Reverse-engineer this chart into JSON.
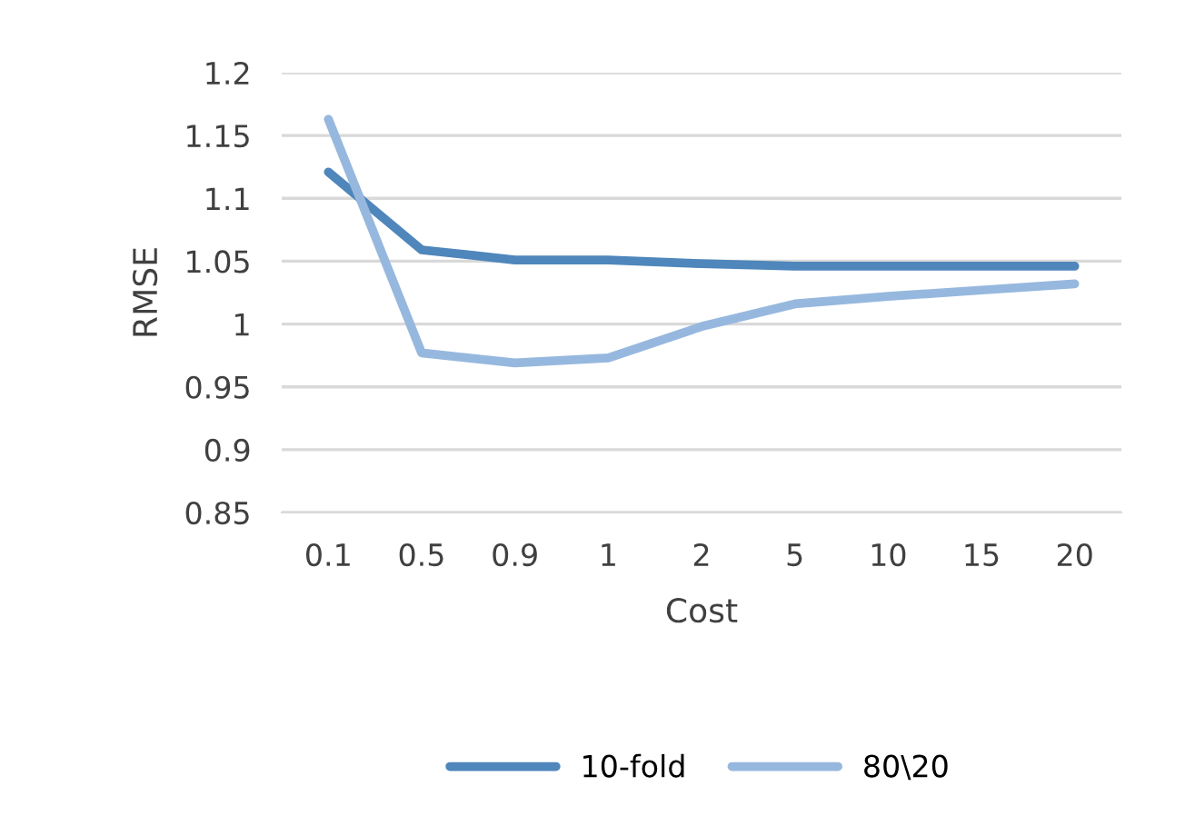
{
  "chart_data": {
    "type": "line",
    "xlabel": "Cost",
    "ylabel": "RMSE",
    "categories": [
      "0.1",
      "0.5",
      "0.9",
      "1",
      "2",
      "5",
      "10",
      "15",
      "20"
    ],
    "series": [
      {
        "name": "10-fold",
        "color": "#4f86bb",
        "values": [
          1.121,
          1.059,
          1.051,
          1.051,
          1.048,
          1.046,
          1.046,
          1.046,
          1.046
        ]
      },
      {
        "name": "80\\20",
        "color": "#97b8de",
        "values": [
          1.163,
          0.977,
          0.969,
          0.973,
          0.998,
          1.016,
          1.022,
          1.027,
          1.032
        ]
      }
    ],
    "ylim": [
      0.85,
      1.2
    ],
    "yticks": [
      {
        "value": 0.85,
        "label": "0.85"
      },
      {
        "value": 0.9,
        "label": "0.9"
      },
      {
        "value": 0.95,
        "label": "0.95"
      },
      {
        "value": 1,
        "label": "1"
      },
      {
        "value": 1.05,
        "label": "1.05"
      },
      {
        "value": 1.1,
        "label": "1.1"
      },
      {
        "value": 1.15,
        "label": "1.15"
      },
      {
        "value": 1.2,
        "label": "1.2"
      }
    ],
    "grid": "y",
    "legend": "bottom",
    "line_style": "solid",
    "marker": "none"
  }
}
